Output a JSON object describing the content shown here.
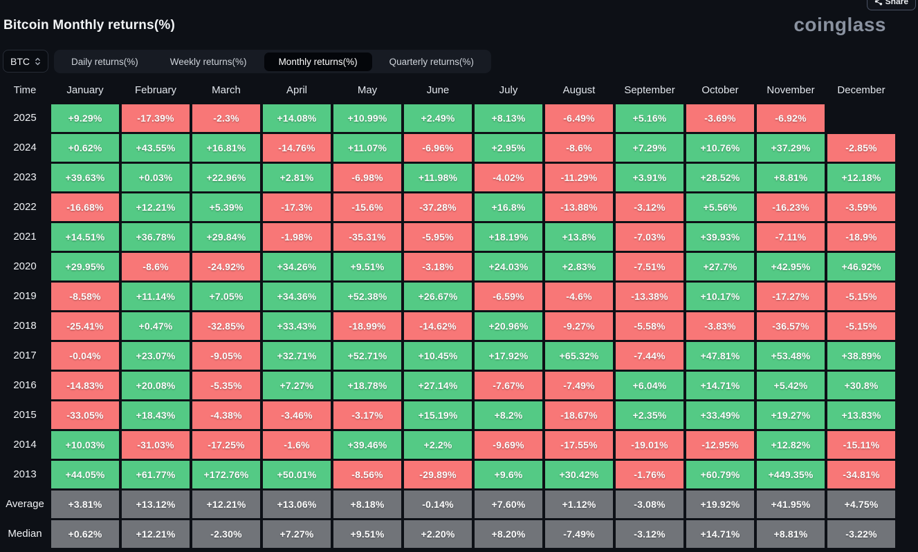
{
  "page": {
    "title": "Bitcoin Monthly returns(%)",
    "logo": "coinglass",
    "share_label": "Share"
  },
  "controls": {
    "symbol_select": {
      "value": "BTC"
    },
    "tabs": [
      {
        "label": "Daily returns(%)",
        "active": false
      },
      {
        "label": "Weekly returns(%)",
        "active": false
      },
      {
        "label": "Monthly returns(%)",
        "active": true
      },
      {
        "label": "Quarterly returns(%)",
        "active": false
      }
    ]
  },
  "colors": {
    "positive": "#54ca85",
    "negative": "#f87777",
    "summary": "#717479"
  },
  "table": {
    "time_header": "Time",
    "months": [
      "January",
      "February",
      "March",
      "April",
      "May",
      "June",
      "July",
      "August",
      "September",
      "October",
      "November",
      "December"
    ],
    "rows": [
      {
        "label": "2025",
        "kind": "year",
        "values": [
          "+9.29%",
          "-17.39%",
          "-2.3%",
          "+14.08%",
          "+10.99%",
          "+2.49%",
          "+8.13%",
          "-6.49%",
          "+5.16%",
          "-3.69%",
          "-6.92%",
          ""
        ]
      },
      {
        "label": "2024",
        "kind": "year",
        "values": [
          "+0.62%",
          "+43.55%",
          "+16.81%",
          "-14.76%",
          "+11.07%",
          "-6.96%",
          "+2.95%",
          "-8.6%",
          "+7.29%",
          "+10.76%",
          "+37.29%",
          "-2.85%"
        ]
      },
      {
        "label": "2023",
        "kind": "year",
        "values": [
          "+39.63%",
          "+0.03%",
          "+22.96%",
          "+2.81%",
          "-6.98%",
          "+11.98%",
          "-4.02%",
          "-11.29%",
          "+3.91%",
          "+28.52%",
          "+8.81%",
          "+12.18%"
        ]
      },
      {
        "label": "2022",
        "kind": "year",
        "values": [
          "-16.68%",
          "+12.21%",
          "+5.39%",
          "-17.3%",
          "-15.6%",
          "-37.28%",
          "+16.8%",
          "-13.88%",
          "-3.12%",
          "+5.56%",
          "-16.23%",
          "-3.59%"
        ]
      },
      {
        "label": "2021",
        "kind": "year",
        "values": [
          "+14.51%",
          "+36.78%",
          "+29.84%",
          "-1.98%",
          "-35.31%",
          "-5.95%",
          "+18.19%",
          "+13.8%",
          "-7.03%",
          "+39.93%",
          "-7.11%",
          "-18.9%"
        ]
      },
      {
        "label": "2020",
        "kind": "year",
        "values": [
          "+29.95%",
          "-8.6%",
          "-24.92%",
          "+34.26%",
          "+9.51%",
          "-3.18%",
          "+24.03%",
          "+2.83%",
          "-7.51%",
          "+27.7%",
          "+42.95%",
          "+46.92%"
        ]
      },
      {
        "label": "2019",
        "kind": "year",
        "values": [
          "-8.58%",
          "+11.14%",
          "+7.05%",
          "+34.36%",
          "+52.38%",
          "+26.67%",
          "-6.59%",
          "-4.6%",
          "-13.38%",
          "+10.17%",
          "-17.27%",
          "-5.15%"
        ]
      },
      {
        "label": "2018",
        "kind": "year",
        "values": [
          "-25.41%",
          "+0.47%",
          "-32.85%",
          "+33.43%",
          "-18.99%",
          "-14.62%",
          "+20.96%",
          "-9.27%",
          "-5.58%",
          "-3.83%",
          "-36.57%",
          "-5.15%"
        ]
      },
      {
        "label": "2017",
        "kind": "year",
        "values": [
          "-0.04%",
          "+23.07%",
          "-9.05%",
          "+32.71%",
          "+52.71%",
          "+10.45%",
          "+17.92%",
          "+65.32%",
          "-7.44%",
          "+47.81%",
          "+53.48%",
          "+38.89%"
        ]
      },
      {
        "label": "2016",
        "kind": "year",
        "values": [
          "-14.83%",
          "+20.08%",
          "-5.35%",
          "+7.27%",
          "+18.78%",
          "+27.14%",
          "-7.67%",
          "-7.49%",
          "+6.04%",
          "+14.71%",
          "+5.42%",
          "+30.8%"
        ]
      },
      {
        "label": "2015",
        "kind": "year",
        "values": [
          "-33.05%",
          "+18.43%",
          "-4.38%",
          "-3.46%",
          "-3.17%",
          "+15.19%",
          "+8.2%",
          "-18.67%",
          "+2.35%",
          "+33.49%",
          "+19.27%",
          "+13.83%"
        ]
      },
      {
        "label": "2014",
        "kind": "year",
        "values": [
          "+10.03%",
          "-31.03%",
          "-17.25%",
          "-1.6%",
          "+39.46%",
          "+2.2%",
          "-9.69%",
          "-17.55%",
          "-19.01%",
          "-12.95%",
          "+12.82%",
          "-15.11%"
        ]
      },
      {
        "label": "2013",
        "kind": "year",
        "values": [
          "+44.05%",
          "+61.77%",
          "+172.76%",
          "+50.01%",
          "-8.56%",
          "-29.89%",
          "+9.6%",
          "+30.42%",
          "-1.76%",
          "+60.79%",
          "+449.35%",
          "-34.81%"
        ]
      },
      {
        "label": "Average",
        "kind": "summary",
        "values": [
          "+3.81%",
          "+13.12%",
          "+12.21%",
          "+13.06%",
          "+8.18%",
          "-0.14%",
          "+7.60%",
          "+1.12%",
          "-3.08%",
          "+19.92%",
          "+41.95%",
          "+4.75%"
        ]
      },
      {
        "label": "Median",
        "kind": "summary",
        "values": [
          "+0.62%",
          "+12.21%",
          "-2.30%",
          "+7.27%",
          "+9.51%",
          "+2.20%",
          "+8.20%",
          "-7.49%",
          "-3.12%",
          "+14.71%",
          "+8.81%",
          "-3.22%"
        ]
      }
    ]
  }
}
